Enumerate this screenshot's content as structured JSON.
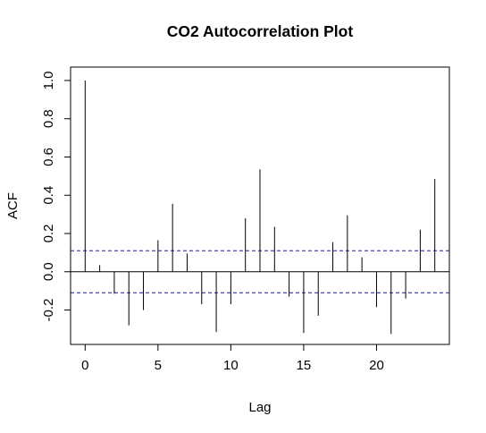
{
  "chart_data": {
    "type": "bar",
    "title": "CO2 Autocorrelation Plot",
    "xlabel": "Lag",
    "ylabel": "ACF",
    "xlim": [
      -1,
      25
    ],
    "ylim": [
      -0.38,
      1.07
    ],
    "x_ticks": [
      0,
      5,
      10,
      15,
      20
    ],
    "x_tick_labels": [
      "0",
      "5",
      "10",
      "15",
      "20"
    ],
    "y_ticks": [
      -0.2,
      0.0,
      0.2,
      0.4,
      0.6,
      0.8,
      1.0
    ],
    "y_tick_labels": [
      "-0.2",
      "0.0",
      "0.2",
      "0.4",
      "0.6",
      "0.8",
      "1.0"
    ],
    "lags": [
      0,
      1,
      2,
      3,
      4,
      5,
      6,
      7,
      8,
      9,
      10,
      11,
      12,
      13,
      14,
      15,
      16,
      17,
      18,
      19,
      20,
      21,
      22,
      23,
      24
    ],
    "acf": [
      1.0,
      0.035,
      -0.115,
      -0.28,
      -0.2,
      0.165,
      0.355,
      0.095,
      -0.17,
      -0.315,
      -0.17,
      0.28,
      0.535,
      0.235,
      -0.13,
      -0.32,
      -0.23,
      0.155,
      0.295,
      0.075,
      -0.185,
      -0.325,
      -0.14,
      0.22,
      0.485
    ],
    "confidence_bound": 0.11,
    "grid": false
  }
}
